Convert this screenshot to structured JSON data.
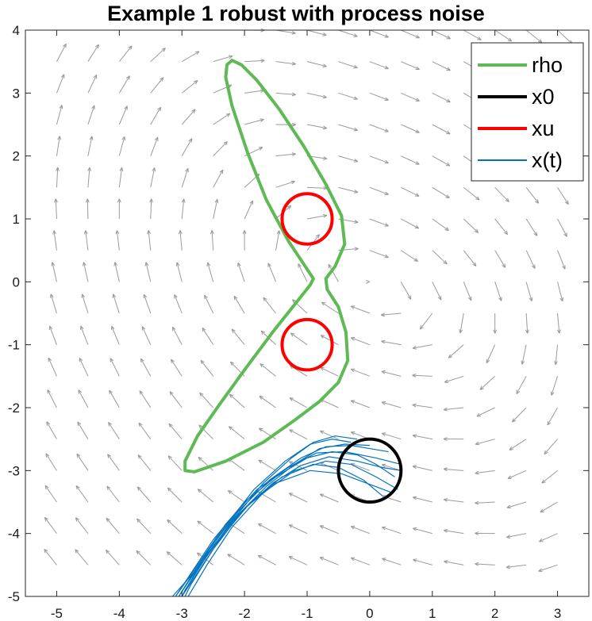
{
  "chart_data": {
    "type": "line",
    "title": "Example 1 robust with process noise",
    "xlabel": "",
    "ylabel": "",
    "xlim": [
      -5.5,
      3.5
    ],
    "ylim": [
      -5,
      4
    ],
    "xticks": [
      -5,
      -4,
      -3,
      -2,
      -1,
      0,
      1,
      2,
      3
    ],
    "yticks": [
      -5,
      -4,
      -3,
      -2,
      -1,
      0,
      1,
      2,
      3,
      4
    ],
    "grid": false,
    "legend_position": "top-right",
    "legend": [
      {
        "label": "rho",
        "color": "#5fba56"
      },
      {
        "label": "x0",
        "color": "#000000"
      },
      {
        "label": "xu",
        "color": "#ff0000"
      },
      {
        "label": "x(t)",
        "color": "#0072bd"
      }
    ],
    "series": [
      {
        "name": "rho",
        "kind": "closed-curve",
        "color": "#5fba56",
        "points": [
          [
            -2.2,
            3.52
          ],
          [
            -2.05,
            3.45
          ],
          [
            -1.8,
            3.2
          ],
          [
            -1.45,
            2.75
          ],
          [
            -1.05,
            2.15
          ],
          [
            -0.7,
            1.55
          ],
          [
            -0.45,
            1.05
          ],
          [
            -0.4,
            0.6
          ],
          [
            -0.55,
            0.25
          ],
          [
            -0.7,
            0.05
          ],
          [
            -0.68,
            -0.12
          ],
          [
            -0.5,
            -0.4
          ],
          [
            -0.38,
            -0.8
          ],
          [
            -0.35,
            -1.25
          ],
          [
            -0.5,
            -1.6
          ],
          [
            -0.8,
            -1.9
          ],
          [
            -1.2,
            -2.2
          ],
          [
            -1.7,
            -2.55
          ],
          [
            -2.3,
            -2.85
          ],
          [
            -2.8,
            -3.02
          ],
          [
            -2.95,
            -3.0
          ],
          [
            -2.95,
            -2.85
          ],
          [
            -2.75,
            -2.45
          ],
          [
            -2.4,
            -1.95
          ],
          [
            -2.0,
            -1.4
          ],
          [
            -1.55,
            -0.8
          ],
          [
            -1.15,
            -0.3
          ],
          [
            -0.95,
            -0.05
          ],
          [
            -0.9,
            0.05
          ],
          [
            -1.0,
            0.2
          ],
          [
            -1.3,
            0.65
          ],
          [
            -1.65,
            1.3
          ],
          [
            -1.95,
            2.05
          ],
          [
            -2.2,
            2.8
          ],
          [
            -2.3,
            3.25
          ],
          [
            -2.28,
            3.45
          ]
        ]
      },
      {
        "name": "x0",
        "kind": "circle",
        "color": "#000000",
        "center": [
          0,
          -3
        ],
        "radius": 0.5
      },
      {
        "name": "xu",
        "kind": "circle",
        "color": "#ff0000",
        "center": [
          -1,
          1
        ],
        "radius": 0.4
      },
      {
        "name": "xu",
        "kind": "circle",
        "color": "#ff0000",
        "center": [
          -1,
          -1
        ],
        "radius": 0.4
      },
      {
        "name": "x(t)",
        "kind": "trajectories",
        "color": "#0072bd",
        "paths": [
          [
            [
              0.4,
              -3.1
            ],
            [
              0.1,
              -2.9
            ],
            [
              -0.2,
              -2.75
            ],
            [
              -0.6,
              -2.7
            ],
            [
              -1.0,
              -2.8
            ],
            [
              -1.5,
              -3.1
            ],
            [
              -2.0,
              -3.5
            ],
            [
              -2.5,
              -4.1
            ],
            [
              -2.9,
              -4.7
            ],
            [
              -3.1,
              -5.0
            ]
          ],
          [
            [
              0.3,
              -2.7
            ],
            [
              0.0,
              -2.65
            ],
            [
              -0.3,
              -2.6
            ],
            [
              -0.7,
              -2.62
            ],
            [
              -1.1,
              -2.8
            ],
            [
              -1.6,
              -3.15
            ],
            [
              -2.1,
              -3.65
            ],
            [
              -2.6,
              -4.3
            ],
            [
              -3.0,
              -5.0
            ]
          ],
          [
            [
              0.45,
              -3.3
            ],
            [
              0.1,
              -3.1
            ],
            [
              -0.3,
              -2.9
            ],
            [
              -0.7,
              -2.85
            ],
            [
              -1.2,
              -3.0
            ],
            [
              -1.7,
              -3.35
            ],
            [
              -2.2,
              -3.9
            ],
            [
              -2.6,
              -4.5
            ],
            [
              -2.9,
              -5.0
            ]
          ],
          [
            [
              -0.3,
              -2.55
            ],
            [
              -0.6,
              -2.5
            ],
            [
              -0.95,
              -2.58
            ],
            [
              -1.35,
              -2.85
            ],
            [
              -1.85,
              -3.3
            ],
            [
              -2.35,
              -3.95
            ],
            [
              -2.8,
              -4.6
            ],
            [
              -3.05,
              -5.0
            ]
          ],
          [
            [
              0.2,
              -3.4
            ],
            [
              -0.1,
              -3.15
            ],
            [
              -0.5,
              -2.95
            ],
            [
              -0.9,
              -2.9
            ],
            [
              -1.4,
              -3.1
            ],
            [
              -1.9,
              -3.5
            ],
            [
              -2.4,
              -4.1
            ],
            [
              -2.8,
              -4.7
            ],
            [
              -3.0,
              -5.0
            ]
          ],
          [
            [
              0.5,
              -2.9
            ],
            [
              0.1,
              -2.8
            ],
            [
              -0.4,
              -2.7
            ],
            [
              -0.85,
              -2.72
            ],
            [
              -1.3,
              -2.95
            ],
            [
              -1.8,
              -3.3
            ],
            [
              -2.3,
              -3.85
            ],
            [
              -2.75,
              -4.5
            ],
            [
              -3.1,
              -5.0
            ]
          ],
          [
            [
              -0.2,
              -2.5
            ],
            [
              -0.55,
              -2.45
            ],
            [
              -0.9,
              -2.55
            ],
            [
              -1.25,
              -2.8
            ],
            [
              -1.7,
              -3.2
            ],
            [
              -2.2,
              -3.8
            ],
            [
              -2.7,
              -4.5
            ],
            [
              -3.15,
              -5.0
            ]
          ],
          [
            [
              0.35,
              -3.35
            ],
            [
              -0.05,
              -3.2
            ],
            [
              -0.45,
              -3.05
            ],
            [
              -0.95,
              -3.0
            ],
            [
              -1.5,
              -3.2
            ],
            [
              -2.0,
              -3.6
            ],
            [
              -2.5,
              -4.25
            ],
            [
              -2.85,
              -4.8
            ],
            [
              -2.95,
              -5.0
            ]
          ],
          [
            [
              0.0,
              -2.6
            ],
            [
              -0.4,
              -2.58
            ],
            [
              -0.8,
              -2.65
            ],
            [
              -1.2,
              -2.9
            ],
            [
              -1.65,
              -3.25
            ],
            [
              -2.15,
              -3.75
            ],
            [
              -2.65,
              -4.4
            ],
            [
              -3.05,
              -5.0
            ]
          ],
          [
            [
              0.5,
              -3.0
            ],
            [
              0.2,
              -2.95
            ],
            [
              -0.2,
              -2.85
            ],
            [
              -0.65,
              -2.78
            ],
            [
              -1.1,
              -2.92
            ],
            [
              -1.55,
              -3.2
            ],
            [
              -2.05,
              -3.65
            ],
            [
              -2.5,
              -4.2
            ],
            [
              -2.95,
              -4.9
            ],
            [
              -3.0,
              -5.0
            ]
          ]
        ]
      }
    ]
  }
}
